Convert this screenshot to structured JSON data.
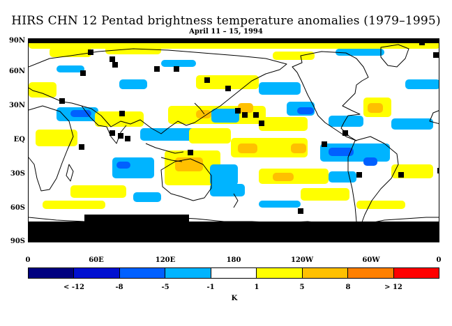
{
  "title": "HIRS CHN 12 Pentad brightness temperature anomalies (1979–1995)",
  "subtitle": "April 11 – 15, 1994",
  "lat_labels": [
    "90N",
    "60N",
    "30N",
    "EQ",
    "30S",
    "60S",
    "90S"
  ],
  "lon_labels": [
    "0",
    "60E",
    "120E",
    "180",
    "120W",
    "60W",
    "0"
  ],
  "colorbar": {
    "colors": [
      "#000080",
      "#0010d0",
      "#0060ff",
      "#00b4ff",
      "#ffffff",
      "#ffff00",
      "#ffc000",
      "#ff8000",
      "#ff0000"
    ],
    "labels": [
      "< -12",
      "-8",
      "-5",
      "-1",
      "1",
      "5",
      "8",
      "> 12"
    ],
    "unit": "K"
  },
  "palette": {
    "missing": "#000000",
    "neg_weak": "#00b4ff",
    "neg_mid": "#0060ff",
    "pos_weak": "#ffff00",
    "pos_mid": "#ffc000",
    "pos_strong": "#ff8000"
  }
}
